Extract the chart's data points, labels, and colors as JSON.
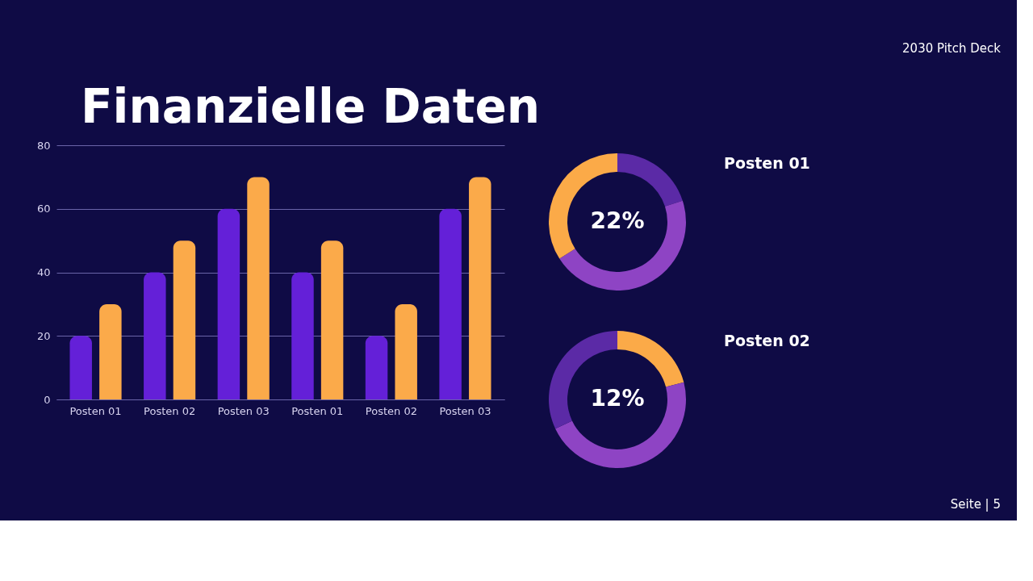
{
  "chart_data": [
    {
      "type": "bar",
      "title": "Finanzielle Daten",
      "categories": [
        "Posten 01",
        "Posten 02",
        "Posten 03",
        "Posten 01",
        "Posten 02",
        "Posten 03"
      ],
      "series": [
        {
          "color": "#6420d8",
          "values": [
            20,
            40,
            60,
            40,
            20,
            60
          ]
        },
        {
          "color": "#fbaa4a",
          "values": [
            30,
            50,
            70,
            50,
            30,
            70
          ]
        }
      ],
      "ylim": [
        0,
        80
      ],
      "yticks": [
        0,
        20,
        40,
        60,
        80
      ],
      "grid": "y",
      "annotations": [
        "2030 Pitch Deck",
        "Seite | 5"
      ]
    },
    {
      "type": "donut",
      "title": "Posten 01",
      "categories": [
        null,
        null,
        null
      ],
      "values": [
        20,
        46,
        34
      ],
      "colors": [
        "#5b2aa6",
        "#8e44c4",
        "#fbaa48"
      ],
      "annotations": [
        "22%"
      ]
    },
    {
      "type": "donut",
      "title": "Posten 02",
      "categories": [
        null,
        null,
        null
      ],
      "values": [
        21,
        47,
        32
      ],
      "colors": [
        "#fbaa48",
        "#8e44c4",
        "#5b2aa6"
      ],
      "annotations": [
        "12%"
      ]
    }
  ]
}
